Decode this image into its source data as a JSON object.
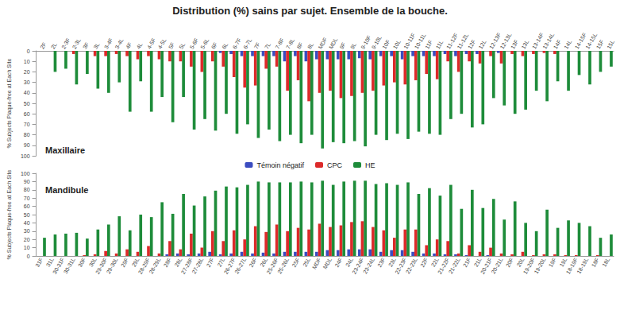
{
  "title": "Distribution (%) sains par sujet. Ensemble de la bouche.",
  "chart_data": [
    {
      "type": "bar",
      "title": "Maxillaire",
      "y_label": "% Subjects Plaque-free at Each Site",
      "categories": [
        "2F",
        "2L",
        "2-3F",
        "2-3L",
        "3F",
        "3L",
        "3-4F",
        "3-4L",
        "4F",
        "4L",
        "4-5F",
        "4-5L",
        "5F",
        "5L",
        "5-6F",
        "5-6L",
        "6F",
        "6L",
        "6-7F",
        "6-7L",
        "7F",
        "7L",
        "7-8F",
        "7-8L",
        "8F",
        "8L",
        "MDF",
        "MDL",
        "9F",
        "9L",
        "9-10F",
        "9-10L",
        "10F",
        "10L",
        "10-11F",
        "10-11L",
        "11F",
        "11L",
        "11-12F",
        "11-12L",
        "12F",
        "12L",
        "12-13F",
        "12-13L",
        "13F",
        "13L",
        "13-14F",
        "13-14L",
        "14F",
        "14L",
        "14-15F",
        "14-15L",
        "15F",
        "15L"
      ],
      "series": [
        {
          "name": "Témoin négatif",
          "color": "#3b4cc0",
          "values": [
            0,
            0,
            0,
            0,
            0,
            0,
            0,
            0,
            0,
            0,
            0,
            0,
            0,
            0,
            0,
            0,
            0,
            2,
            3,
            5,
            5,
            5,
            5,
            10,
            5,
            10,
            8,
            8,
            8,
            8,
            7,
            8,
            5,
            5,
            8,
            5,
            5,
            5,
            3,
            5,
            3,
            3,
            0,
            2,
            0,
            0,
            0,
            0,
            0,
            0,
            0,
            0,
            0,
            0
          ]
        },
        {
          "name": "CPC",
          "color": "#dc2a2a",
          "values": [
            0,
            0,
            0,
            3,
            0,
            5,
            5,
            3,
            5,
            8,
            5,
            8,
            10,
            10,
            15,
            20,
            10,
            15,
            25,
            35,
            33,
            17,
            15,
            38,
            28,
            48,
            40,
            38,
            45,
            43,
            40,
            38,
            33,
            30,
            32,
            28,
            22,
            27,
            10,
            20,
            10,
            12,
            5,
            12,
            3,
            5,
            3,
            2,
            3,
            0,
            0,
            0,
            0,
            0
          ]
        },
        {
          "name": "HE",
          "color": "#1e8c3a",
          "values": [
            0,
            20,
            17,
            32,
            22,
            36,
            40,
            30,
            58,
            29,
            58,
            44,
            68,
            44,
            75,
            65,
            76,
            60,
            79,
            70,
            83,
            75,
            86,
            80,
            88,
            80,
            93,
            87,
            88,
            86,
            91,
            80,
            85,
            79,
            84,
            77,
            79,
            80,
            65,
            60,
            73,
            70,
            45,
            52,
            60,
            56,
            38,
            48,
            29,
            38,
            23,
            32,
            20,
            15
          ]
        }
      ],
      "ylim": [
        0,
        100
      ],
      "yticks": [
        0,
        10,
        20,
        30,
        40,
        50,
        60,
        70,
        80,
        90,
        100
      ],
      "grid": false,
      "legend": "bottom"
    },
    {
      "type": "bar",
      "title": "Mandibule",
      "y_label": "% Subjects Plaque-free at Each Site",
      "categories": [
        "31F",
        "31L",
        "30-31F",
        "30-31L",
        "30F",
        "30L",
        "29-30F",
        "29-30L",
        "29F",
        "29L",
        "28-29F",
        "28-29L",
        "28F",
        "28L",
        "27-28F",
        "27-28L",
        "27F",
        "27L",
        "26-27F",
        "26-27L",
        "26F",
        "26L",
        "25-26F",
        "25-26L",
        "25F",
        "25L",
        "MDF",
        "MDL",
        "24F",
        "24L",
        "23-24F",
        "23-24L",
        "23F",
        "23L",
        "22-23F",
        "22-23L",
        "22F",
        "22L",
        "21-22F",
        "21-22L",
        "21F",
        "21L",
        "20-21F",
        "20-21L",
        "20F",
        "20L",
        "19-20F",
        "19-20L",
        "19F",
        "19L",
        "18-19F",
        "18-19L",
        "18F",
        "18L"
      ],
      "series": [
        {
          "name": "Témoin négatif",
          "color": "#3b4cc0",
          "values": [
            0,
            0,
            0,
            0,
            0,
            0,
            0,
            0,
            0,
            0,
            0,
            0,
            2,
            3,
            2,
            3,
            5,
            2,
            3,
            5,
            3,
            4,
            3,
            5,
            5,
            5,
            5,
            7,
            7,
            8,
            8,
            8,
            5,
            7,
            7,
            5,
            3,
            3,
            2,
            2,
            1,
            0,
            1,
            0,
            0,
            0,
            0,
            0,
            0,
            0,
            0,
            0,
            0,
            0
          ]
        },
        {
          "name": "CPC",
          "color": "#dc2a2a",
          "values": [
            0,
            0,
            0,
            0,
            1,
            2,
            6,
            3,
            8,
            5,
            12,
            3,
            18,
            8,
            27,
            10,
            30,
            18,
            31,
            20,
            36,
            29,
            38,
            30,
            34,
            32,
            39,
            35,
            37,
            41,
            42,
            35,
            31,
            22,
            32,
            32,
            13,
            20,
            18,
            3,
            13,
            5,
            10,
            3,
            2,
            5,
            1,
            2,
            2,
            1,
            1,
            0,
            1,
            0
          ]
        },
        {
          "name": "HE",
          "color": "#1e8c3a",
          "values": [
            22,
            26,
            27,
            28,
            21,
            32,
            38,
            48,
            31,
            50,
            47,
            65,
            51,
            75,
            61,
            72,
            79,
            84,
            83,
            86,
            90,
            89,
            89,
            89,
            90,
            89,
            91,
            86,
            90,
            91,
            91,
            87,
            88,
            86,
            89,
            75,
            82,
            73,
            86,
            57,
            80,
            58,
            69,
            44,
            66,
            40,
            30,
            56,
            34,
            43,
            40,
            36,
            22,
            26
          ]
        }
      ],
      "ylim": [
        0,
        100
      ],
      "yticks": [
        0,
        10,
        20,
        30,
        40,
        50,
        60,
        70,
        80,
        90,
        100
      ],
      "grid": false
    }
  ]
}
